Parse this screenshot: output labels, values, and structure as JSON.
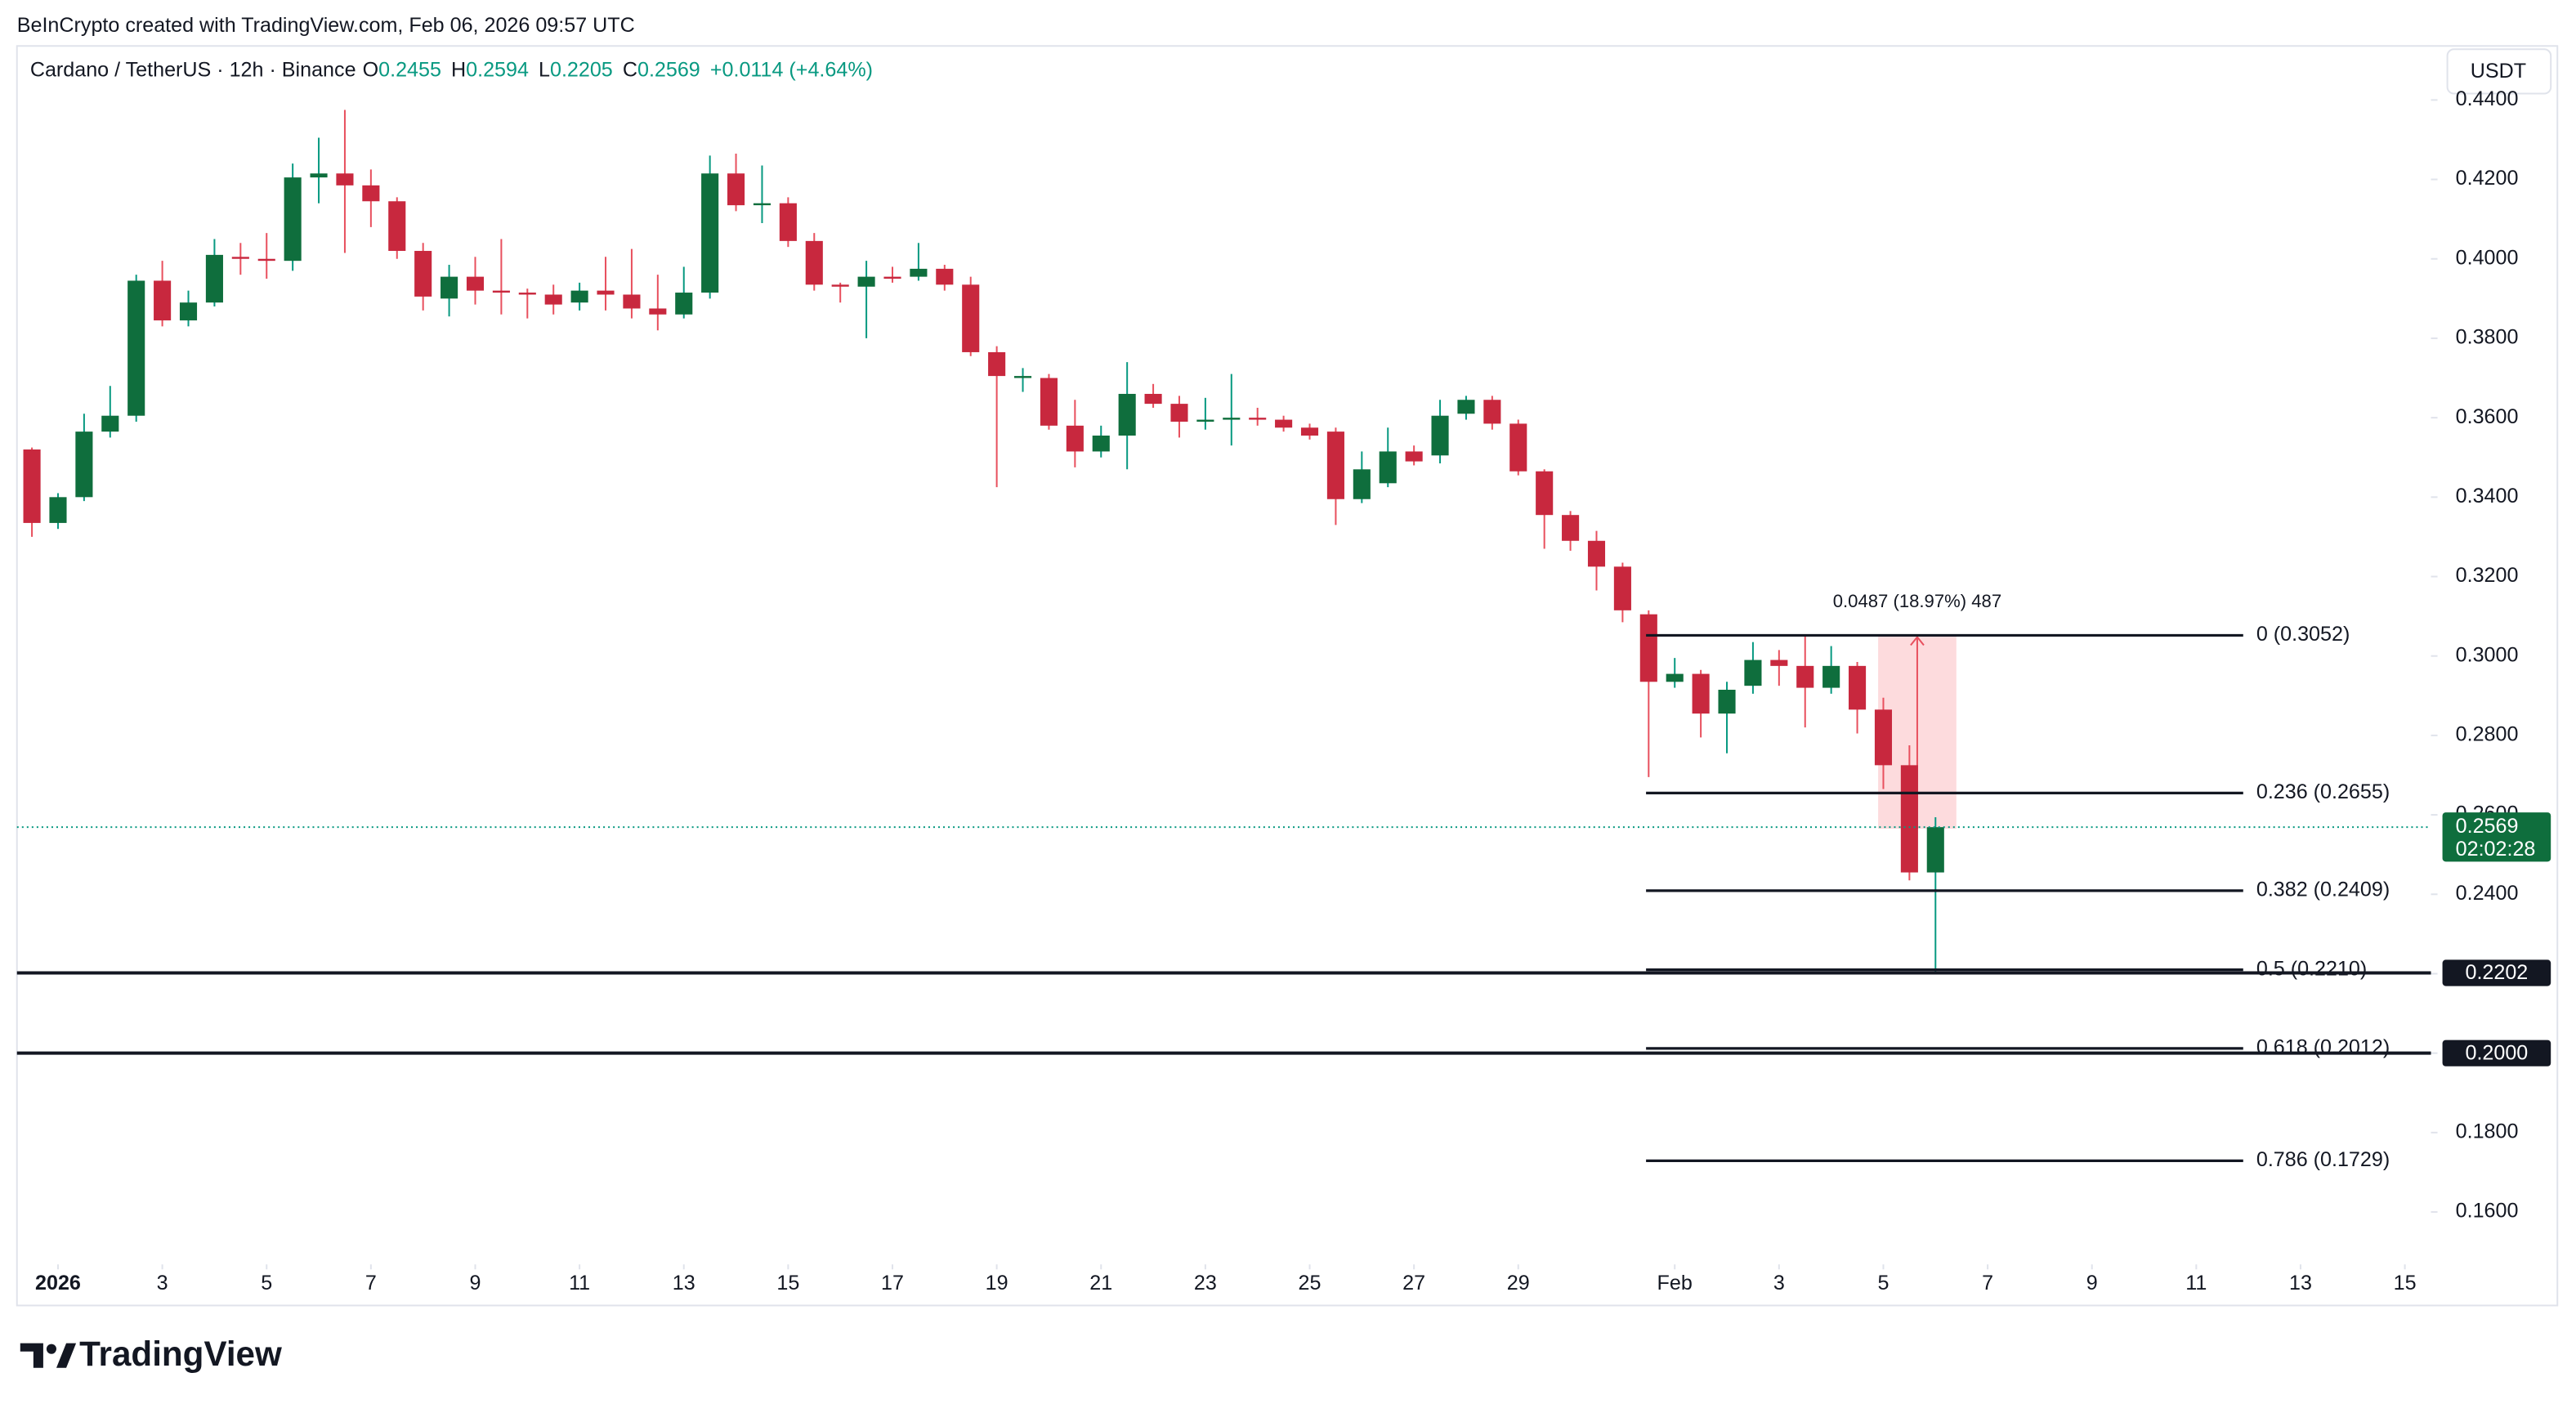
{
  "chart_data": {
    "type": "candlestick",
    "credit": "BeInCrypto created with TradingView.com, Feb 06, 2026 09:57 UTC",
    "title": "Cardano / TetherUS · 12h · Binance",
    "ohlc_legend": [
      {
        "label": "O",
        "value": 0.2455
      },
      {
        "label": "H",
        "value": 0.2594
      },
      {
        "label": "L",
        "value": 0.2205
      },
      {
        "label": "C",
        "value": 0.2569
      }
    ],
    "change": "+0.0114 (+4.64%)",
    "currency": "USDT",
    "brand": "TradingView",
    "up_color": "#0f6e3d",
    "down_color": "#c8283e",
    "x": [
      -0.5,
      0,
      0.5,
      1,
      1.5,
      2,
      2.5,
      3,
      3.5,
      4,
      4.5,
      5,
      5.5,
      6,
      6.5,
      7,
      7.5,
      8,
      8.5,
      9,
      9.5,
      10,
      10.5,
      11,
      11.5,
      12,
      12.5,
      13,
      13.5,
      14,
      14.5,
      15,
      15.5,
      16,
      16.5,
      17,
      17.5,
      18,
      18.5,
      19,
      19.5,
      20,
      20.5,
      21,
      21.5,
      22,
      22.5,
      23,
      23.5,
      24,
      24.5,
      25,
      25.5,
      26,
      26.5,
      27,
      27.5,
      28,
      28.5,
      29,
      29.5,
      30,
      30.5,
      31,
      31.5,
      32,
      32.5,
      33,
      33.5,
      34,
      34.5,
      35,
      35.5,
      36
    ],
    "open": [
      0.352,
      0.3335,
      0.34,
      0.3565,
      0.3605,
      0.3945,
      0.3845,
      0.389,
      0.4005,
      0.4,
      0.3995,
      0.4205,
      0.4215,
      0.4185,
      0.4145,
      0.402,
      0.39,
      0.3955,
      0.392,
      0.3915,
      0.391,
      0.389,
      0.392,
      0.391,
      0.3875,
      0.386,
      0.3915,
      0.4215,
      0.4135,
      0.414,
      0.4045,
      0.3935,
      0.393,
      0.3955,
      0.3955,
      0.3975,
      0.3935,
      0.3765,
      0.37,
      0.37,
      0.358,
      0.3515,
      0.3555,
      0.366,
      0.3635,
      0.359,
      0.3595,
      0.36,
      0.3595,
      0.3575,
      0.3565,
      0.3395,
      0.3435,
      0.3515,
      0.3505,
      0.361,
      0.3645,
      0.3585,
      0.3465,
      0.3355,
      0.329,
      0.3225,
      0.3105,
      0.2935,
      0.2955,
      0.2855,
      0.2925,
      0.299,
      0.2975,
      0.292,
      0.2975,
      0.2865,
      0.2725,
      0.2455
    ],
    "high": [
      0.3525,
      0.341,
      0.361,
      0.368,
      0.396,
      0.3995,
      0.392,
      0.405,
      0.404,
      0.4065,
      0.424,
      0.4305,
      0.4375,
      0.4225,
      0.4155,
      0.404,
      0.3985,
      0.4005,
      0.405,
      0.3925,
      0.3935,
      0.394,
      0.4005,
      0.4025,
      0.396,
      0.398,
      0.426,
      0.4265,
      0.4235,
      0.4155,
      0.4065,
      0.394,
      0.3995,
      0.398,
      0.404,
      0.3985,
      0.3955,
      0.378,
      0.3725,
      0.371,
      0.3645,
      0.358,
      0.374,
      0.3685,
      0.3655,
      0.365,
      0.371,
      0.3625,
      0.3605,
      0.3585,
      0.3575,
      0.3515,
      0.3575,
      0.353,
      0.3645,
      0.3655,
      0.3655,
      0.3595,
      0.347,
      0.3365,
      0.3315,
      0.3235,
      0.3115,
      0.2995,
      0.2965,
      0.2935,
      0.3035,
      0.3015,
      0.3052,
      0.3025,
      0.2985,
      0.2895,
      0.2775,
      0.2594
    ],
    "low": [
      0.33,
      0.332,
      0.339,
      0.355,
      0.359,
      0.383,
      0.383,
      0.388,
      0.396,
      0.395,
      0.397,
      0.414,
      0.4015,
      0.408,
      0.4,
      0.387,
      0.3855,
      0.3885,
      0.386,
      0.385,
      0.386,
      0.387,
      0.387,
      0.385,
      0.382,
      0.385,
      0.39,
      0.412,
      0.409,
      0.403,
      0.392,
      0.389,
      0.38,
      0.394,
      0.3945,
      0.392,
      0.3755,
      0.3425,
      0.3665,
      0.357,
      0.3475,
      0.35,
      0.347,
      0.3625,
      0.355,
      0.357,
      0.353,
      0.358,
      0.3565,
      0.3545,
      0.333,
      0.3385,
      0.3425,
      0.348,
      0.3485,
      0.3595,
      0.357,
      0.3455,
      0.327,
      0.3265,
      0.3165,
      0.3085,
      0.2695,
      0.292,
      0.2795,
      0.2755,
      0.2905,
      0.2925,
      0.282,
      0.2905,
      0.2805,
      0.2665,
      0.2435,
      0.2205
    ],
    "close": [
      0.3335,
      0.34,
      0.3565,
      0.3605,
      0.3945,
      0.3845,
      0.389,
      0.401,
      0.4,
      0.3995,
      0.4205,
      0.4215,
      0.4185,
      0.4145,
      0.402,
      0.3905,
      0.3955,
      0.392,
      0.3915,
      0.391,
      0.3885,
      0.392,
      0.391,
      0.3875,
      0.386,
      0.3915,
      0.4215,
      0.4135,
      0.414,
      0.4045,
      0.3935,
      0.393,
      0.3955,
      0.395,
      0.3975,
      0.3935,
      0.3765,
      0.3705,
      0.3705,
      0.358,
      0.3515,
      0.3555,
      0.366,
      0.3635,
      0.359,
      0.3595,
      0.36,
      0.3595,
      0.3575,
      0.3555,
      0.3395,
      0.347,
      0.3515,
      0.349,
      0.3605,
      0.3645,
      0.3585,
      0.3465,
      0.3355,
      0.329,
      0.3225,
      0.3115,
      0.2935,
      0.2955,
      0.2855,
      0.2915,
      0.299,
      0.2975,
      0.292,
      0.2975,
      0.2865,
      0.2725,
      0.2455,
      0.2569
    ],
    "xlim": [
      -0.787,
      45.5
    ],
    "xticks": [
      {
        "value": 0,
        "label": "2026"
      },
      {
        "value": 2,
        "label": "3"
      },
      {
        "value": 4,
        "label": "5"
      },
      {
        "value": 6,
        "label": "7"
      },
      {
        "value": 8,
        "label": "9"
      },
      {
        "value": 10,
        "label": "11"
      },
      {
        "value": 12,
        "label": "13"
      },
      {
        "value": 14,
        "label": "15"
      },
      {
        "value": 16,
        "label": "17"
      },
      {
        "value": 18,
        "label": "19"
      },
      {
        "value": 20,
        "label": "21"
      },
      {
        "value": 22,
        "label": "23"
      },
      {
        "value": 24,
        "label": "25"
      },
      {
        "value": 26,
        "label": "27"
      },
      {
        "value": 28,
        "label": "29"
      },
      {
        "value": 31,
        "label": "Feb"
      },
      {
        "value": 33,
        "label": "3"
      },
      {
        "value": 35,
        "label": "5"
      },
      {
        "value": 37,
        "label": "7"
      },
      {
        "value": 39,
        "label": "9"
      },
      {
        "value": 41,
        "label": "11"
      },
      {
        "value": 43,
        "label": "13"
      },
      {
        "value": 45,
        "label": "15"
      }
    ],
    "ylim": [
      0.1468,
      0.4536
    ],
    "yticks": [
      {
        "value": 0.16,
        "label": "0.1600"
      },
      {
        "value": 0.18,
        "label": "0.1800"
      },
      {
        "value": 0.2,
        "label": "0.2000"
      },
      {
        "value": 0.22,
        "label": "0.2200"
      },
      {
        "value": 0.24,
        "label": "0.2400"
      },
      {
        "value": 0.26,
        "label": "0.2600"
      },
      {
        "value": 0.28,
        "label": "0.2800"
      },
      {
        "value": 0.3,
        "label": "0.3000"
      },
      {
        "value": 0.32,
        "label": "0.3200"
      },
      {
        "value": 0.34,
        "label": "0.3400"
      },
      {
        "value": 0.36,
        "label": "0.3600"
      },
      {
        "value": 0.38,
        "label": "0.3800"
      },
      {
        "value": 0.4,
        "label": "0.4000"
      },
      {
        "value": 0.42,
        "label": "0.4200"
      },
      {
        "value": 0.44,
        "label": "0.4400"
      }
    ],
    "fib_x_range": [
      30.45,
      41.9
    ],
    "fib_levels": [
      {
        "value": 0.3052,
        "label": "0 (0.3052)"
      },
      {
        "value": 0.2655,
        "label": "0.236 (0.2655)"
      },
      {
        "value": 0.2409,
        "label": "0.382 (0.2409)"
      },
      {
        "value": 0.221,
        "label": "0.5 (0.2210)"
      },
      {
        "value": 0.2012,
        "label": "0.618 (0.2012)"
      },
      {
        "value": 0.1729,
        "label": "0.786 (0.1729)"
      }
    ],
    "horizontal_lines": [
      {
        "value": 0.2202,
        "label": "0.2202"
      },
      {
        "value": 0.2,
        "label": "0.2000"
      }
    ],
    "current_price": {
      "value": 0.2569,
      "label": "0.2569",
      "countdown": "02:02:28"
    },
    "measure": {
      "from": 0.2565,
      "to": 0.3052,
      "x_range": [
        34.9,
        36.4
      ],
      "label": "0.0487 (18.97%) 487"
    }
  }
}
